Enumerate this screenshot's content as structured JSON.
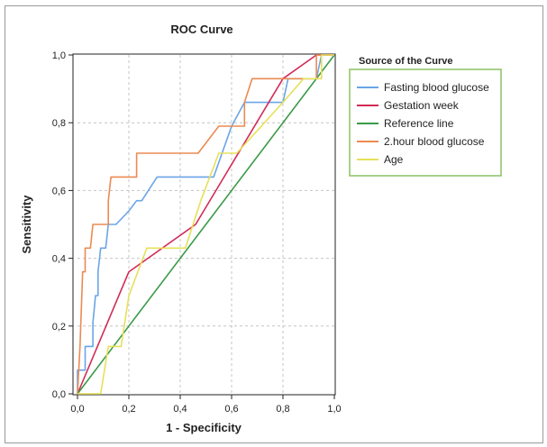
{
  "chart_data": {
    "type": "line",
    "title": "ROC Curve",
    "xlabel": "1 - Specificity",
    "ylabel": "Sensitivity",
    "xlim": [
      0,
      1
    ],
    "ylim": [
      0,
      1
    ],
    "x_ticks": [
      "0,0",
      "0,2",
      "0,4",
      "0,6",
      "0,8",
      "1,0"
    ],
    "y_ticks": [
      "0,0",
      "0,2",
      "0,4",
      "0,6",
      "0,8",
      "1,0"
    ],
    "grid": true,
    "legend_title": "Source of the Curve",
    "legend_position": "right",
    "series": [
      {
        "name": "Fasting blood glucose",
        "color": "#6aa5e7",
        "points": [
          [
            0,
            0
          ],
          [
            0,
            0.07
          ],
          [
            0.03,
            0.07
          ],
          [
            0.03,
            0.14
          ],
          [
            0.06,
            0.14
          ],
          [
            0.06,
            0.21
          ],
          [
            0.07,
            0.29
          ],
          [
            0.08,
            0.29
          ],
          [
            0.08,
            0.36
          ],
          [
            0.09,
            0.43
          ],
          [
            0.11,
            0.43
          ],
          [
            0.12,
            0.5
          ],
          [
            0.15,
            0.5
          ],
          [
            0.2,
            0.54
          ],
          [
            0.23,
            0.57
          ],
          [
            0.25,
            0.57
          ],
          [
            0.31,
            0.64
          ],
          [
            0.53,
            0.64
          ],
          [
            0.6,
            0.79
          ],
          [
            0.65,
            0.86
          ],
          [
            0.8,
            0.86
          ],
          [
            0.82,
            0.93
          ],
          [
            0.93,
            0.93
          ],
          [
            0.95,
            1
          ],
          [
            1,
            1
          ]
        ]
      },
      {
        "name": "Gestation week",
        "color": "#d12b57",
        "points": [
          [
            0,
            0
          ],
          [
            0.2,
            0.36
          ],
          [
            0.46,
            0.5
          ],
          [
            0.8,
            0.93
          ],
          [
            0.93,
            1
          ],
          [
            1,
            1
          ]
        ]
      },
      {
        "name": "Reference line",
        "color": "#3a9a48",
        "points": [
          [
            0,
            0
          ],
          [
            1,
            1
          ]
        ]
      },
      {
        "name": "2.hour blood glucose",
        "color": "#ec8a52",
        "points": [
          [
            0,
            0
          ],
          [
            0.01,
            0.14
          ],
          [
            0.02,
            0.36
          ],
          [
            0.03,
            0.36
          ],
          [
            0.03,
            0.43
          ],
          [
            0.05,
            0.43
          ],
          [
            0.06,
            0.5
          ],
          [
            0.12,
            0.5
          ],
          [
            0.12,
            0.57
          ],
          [
            0.13,
            0.64
          ],
          [
            0.2,
            0.64
          ],
          [
            0.23,
            0.64
          ],
          [
            0.23,
            0.71
          ],
          [
            0.47,
            0.71
          ],
          [
            0.55,
            0.79
          ],
          [
            0.65,
            0.79
          ],
          [
            0.65,
            0.86
          ],
          [
            0.68,
            0.93
          ],
          [
            0.93,
            0.93
          ],
          [
            0.93,
            1
          ],
          [
            1,
            1
          ]
        ]
      },
      {
        "name": "Age",
        "color": "#e6e05a",
        "points": [
          [
            0,
            0
          ],
          [
            0.09,
            0
          ],
          [
            0.12,
            0.14
          ],
          [
            0.17,
            0.14
          ],
          [
            0.2,
            0.29
          ],
          [
            0.27,
            0.43
          ],
          [
            0.42,
            0.43
          ],
          [
            0.48,
            0.57
          ],
          [
            0.55,
            0.71
          ],
          [
            0.62,
            0.71
          ],
          [
            0.8,
            0.86
          ],
          [
            0.88,
            0.93
          ],
          [
            0.95,
            0.93
          ],
          [
            0.95,
            1
          ],
          [
            1,
            1
          ]
        ]
      }
    ]
  }
}
